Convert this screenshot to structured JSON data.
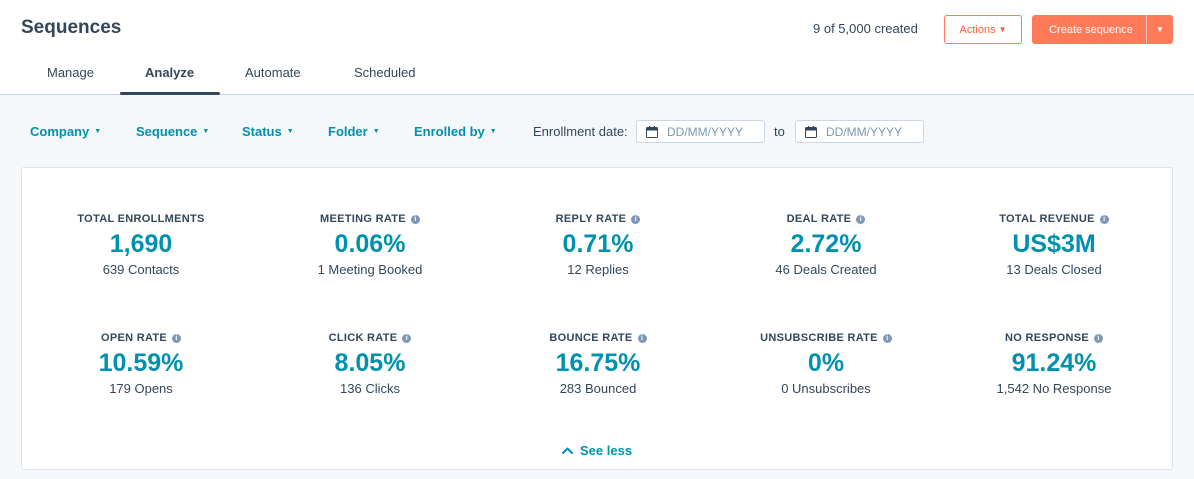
{
  "header": {
    "title": "Sequences",
    "created_count": "9 of 5,000 created",
    "actions_label": "Actions",
    "create_label": "Create sequence"
  },
  "tabs": [
    {
      "label": "Manage",
      "active": false
    },
    {
      "label": "Analyze",
      "active": true
    },
    {
      "label": "Automate",
      "active": false
    },
    {
      "label": "Scheduled",
      "active": false
    }
  ],
  "filters": {
    "items": [
      "Company",
      "Sequence",
      "Status",
      "Folder",
      "Enrolled by"
    ],
    "enrollment_label": "Enrollment date:",
    "date_from_placeholder": "DD/MM/YYYY",
    "to_label": "to",
    "date_to_placeholder": "DD/MM/YYYY"
  },
  "metrics": [
    {
      "label": "TOTAL ENROLLMENTS",
      "value": "1,690",
      "sub": "639 Contacts",
      "info": false
    },
    {
      "label": "MEETING RATE",
      "value": "0.06%",
      "sub": "1 Meeting Booked",
      "info": true
    },
    {
      "label": "REPLY RATE",
      "value": "0.71%",
      "sub": "12 Replies",
      "info": true
    },
    {
      "label": "DEAL RATE",
      "value": "2.72%",
      "sub": "46 Deals Created",
      "info": true
    },
    {
      "label": "TOTAL REVENUE",
      "value": "US$3M",
      "sub": "13 Deals Closed",
      "info": true
    },
    {
      "label": "OPEN RATE",
      "value": "10.59%",
      "sub": "179 Opens",
      "info": true
    },
    {
      "label": "CLICK RATE",
      "value": "8.05%",
      "sub": "136 Clicks",
      "info": true
    },
    {
      "label": "BOUNCE RATE",
      "value": "16.75%",
      "sub": "283 Bounced",
      "info": true
    },
    {
      "label": "UNSUBSCRIBE RATE",
      "value": "0%",
      "sub": "0 Unsubscribes",
      "info": true
    },
    {
      "label": "NO RESPONSE",
      "value": "91.24%",
      "sub": "1,542 No Response",
      "info": true
    }
  ],
  "see_less_label": "See less",
  "colors": {
    "accent": "#0091ae",
    "primary_button": "#ff7a59",
    "text": "#33475b"
  }
}
